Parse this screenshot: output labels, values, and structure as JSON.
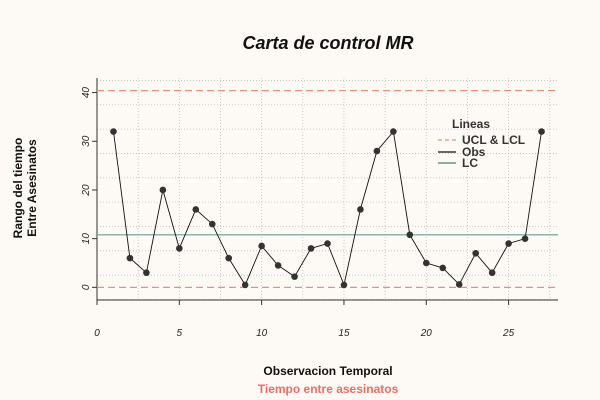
{
  "chart_data": {
    "type": "line",
    "title": "Carta de control MR",
    "xlabel": "Observacion Temporal",
    "ylabel_lines": [
      "Rango del tiempo",
      "Entre Asesinatos"
    ],
    "subtitle": "Tiempo entre asesinatos",
    "x": [
      1,
      2,
      3,
      4,
      5,
      6,
      7,
      8,
      9,
      10,
      11,
      12,
      13,
      14,
      15,
      16,
      17,
      18,
      19,
      20,
      21,
      22,
      23,
      24,
      25,
      26,
      27
    ],
    "series": [
      {
        "name": "Obs",
        "values": [
          32,
          6,
          3,
          20,
          8,
          16,
          13,
          6,
          0.5,
          8.5,
          4.5,
          2.2,
          8,
          9,
          0.5,
          16,
          28,
          32,
          10.8,
          5,
          4,
          0.6,
          7,
          3,
          9,
          10,
          32
        ]
      }
    ],
    "ucl": 40.4,
    "lcl": 0,
    "lc": 10.8,
    "xlim": [
      0,
      28
    ],
    "ylim": [
      -2.6,
      43
    ],
    "xticks": [
      0,
      5,
      10,
      15,
      20,
      25
    ],
    "yticks": [
      0,
      10,
      20,
      30,
      40
    ],
    "grid": true,
    "legend": {
      "title": "Lineas",
      "position": "top-right",
      "entries": [
        "UCL & LCL",
        "Obs",
        "LC"
      ]
    },
    "colors": {
      "limits": "#e88f82",
      "lc": "#6f9a9a",
      "obs_line": "#111111",
      "point": "#333333",
      "grid": "#bdbdbd",
      "subtitle": "#ee6c66",
      "legend_lc": "#557777"
    }
  }
}
